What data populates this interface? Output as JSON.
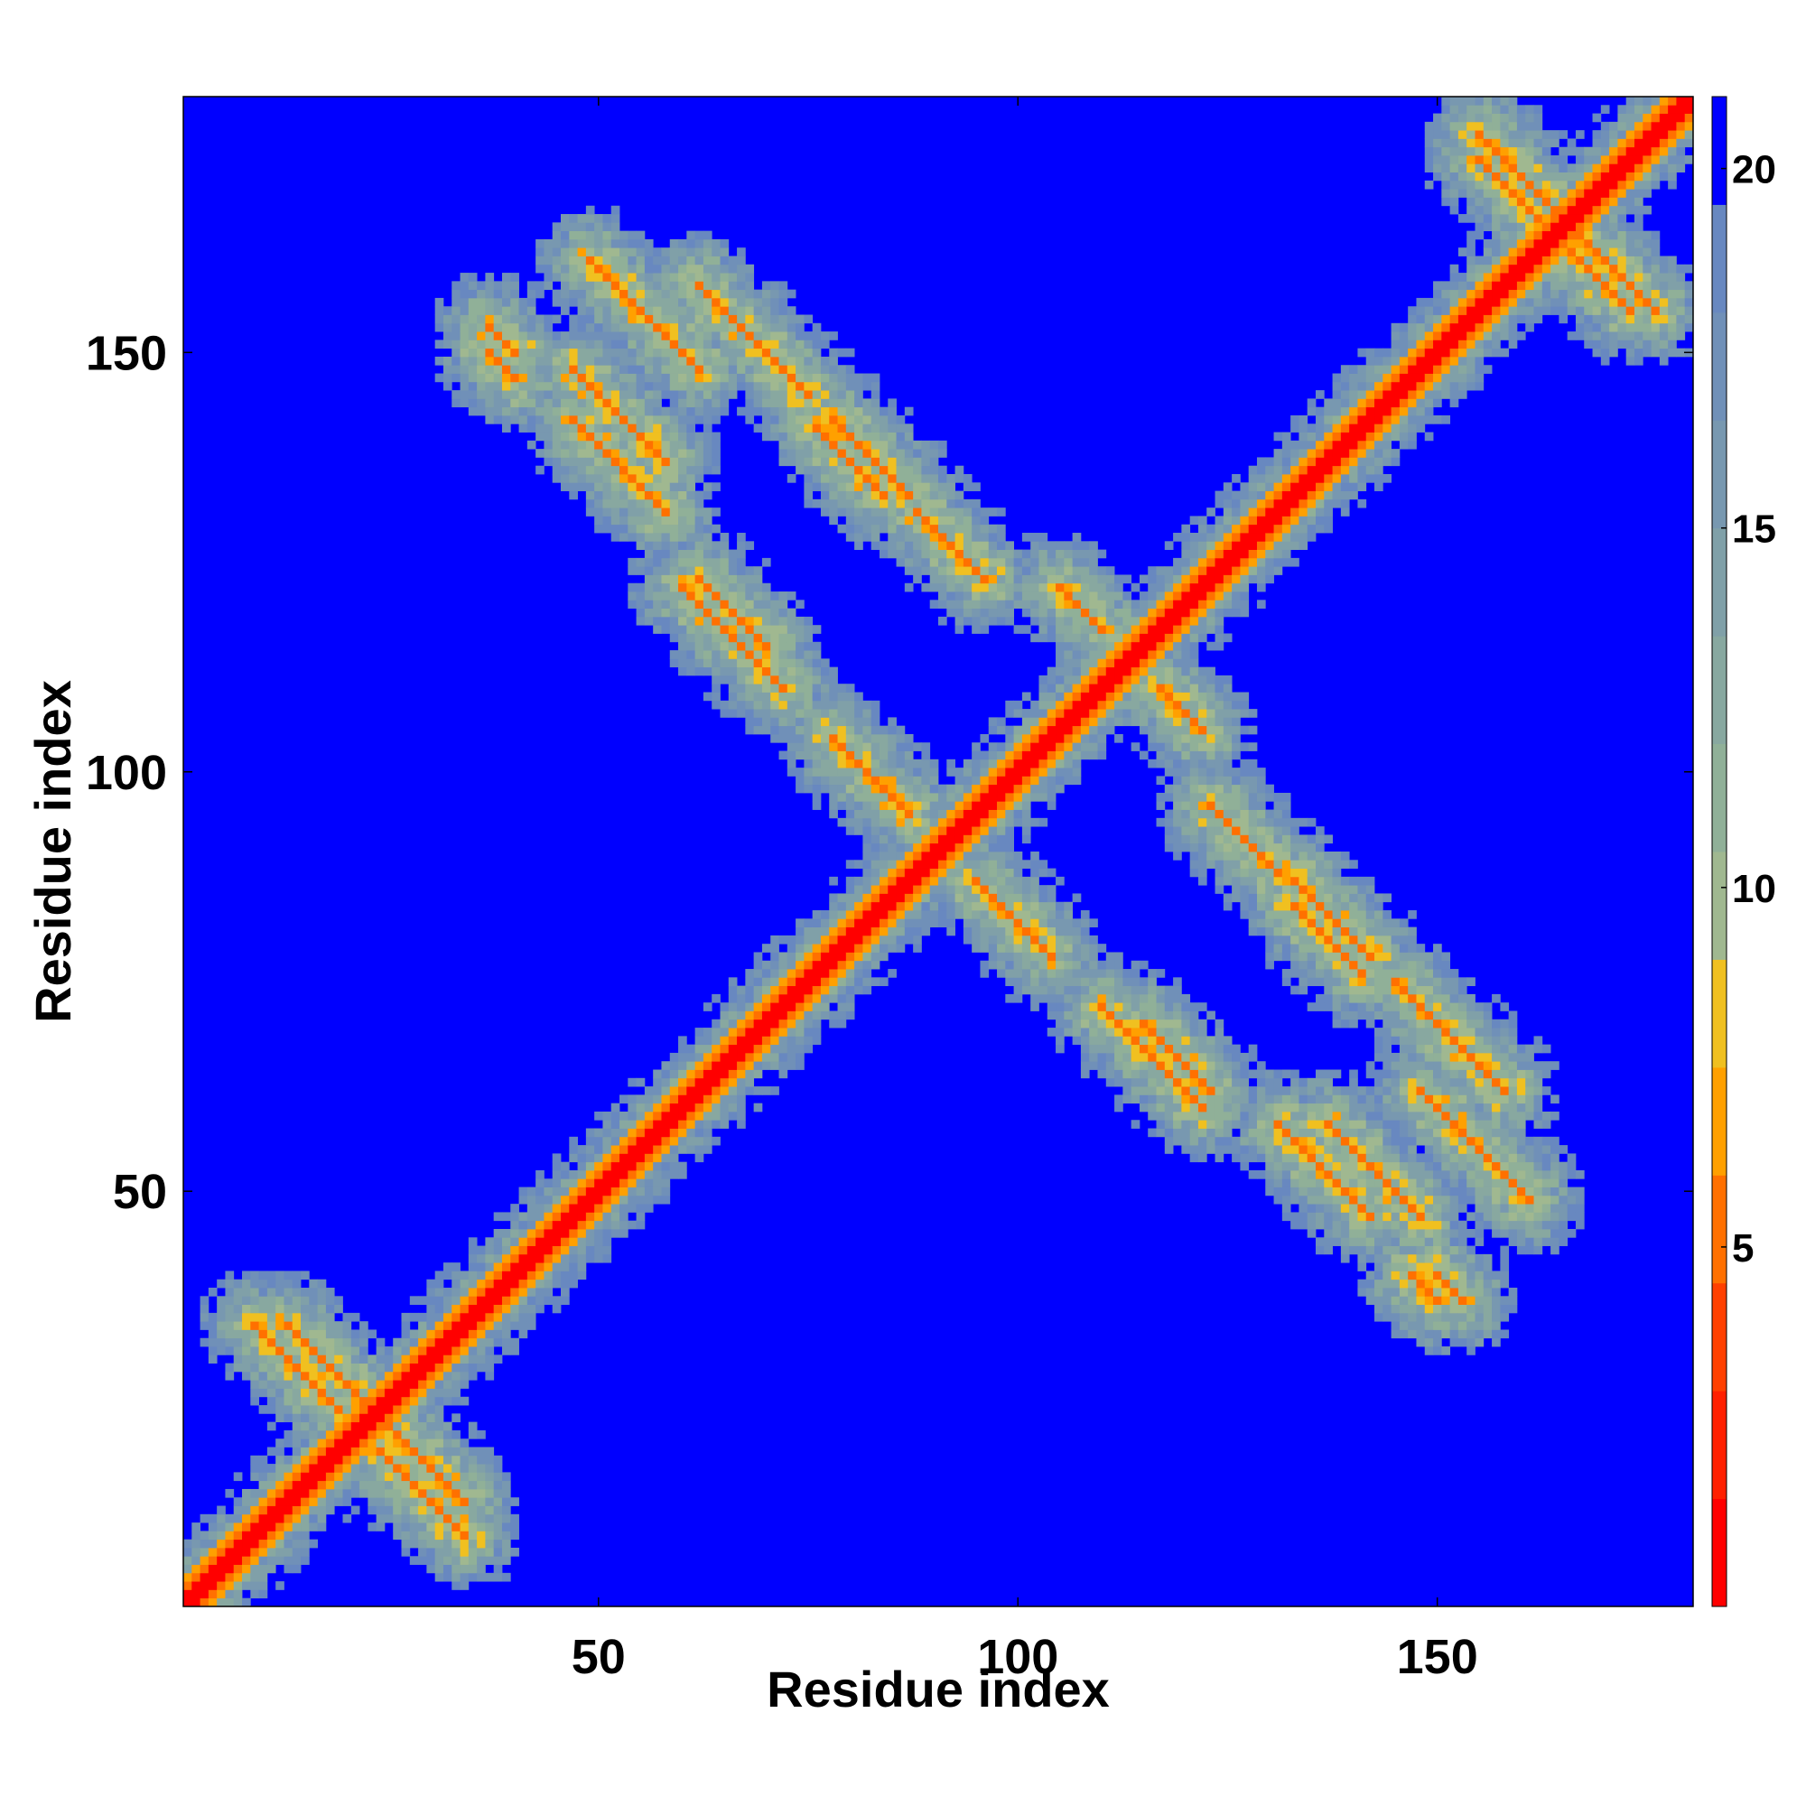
{
  "chart_data": {
    "type": "heatmap",
    "title": "",
    "xlabel": "Residue index",
    "ylabel": "Residue index",
    "n_residues": 180,
    "xlim": [
      1,
      180
    ],
    "ylim": [
      1,
      180
    ],
    "x_ticks": [
      "50",
      "100",
      "150"
    ],
    "y_ticks": [
      "50",
      "100",
      "150"
    ],
    "colorbar": {
      "range": [
        0,
        21
      ],
      "ticks": [
        "5",
        "10",
        "15",
        "20"
      ],
      "levels": [
        {
          "upper": 1.5,
          "color": "#ff0000"
        },
        {
          "upper": 3,
          "color": "#ff2000"
        },
        {
          "upper": 4.5,
          "color": "#ff4000"
        },
        {
          "upper": 6,
          "color": "#ff7000"
        },
        {
          "upper": 7.5,
          "color": "#ffa000"
        },
        {
          "upper": 9,
          "color": "#f0c020"
        },
        {
          "upper": 10.5,
          "color": "#a0b890"
        },
        {
          "upper": 12,
          "color": "#90b098"
        },
        {
          "upper": 13.5,
          "color": "#88a8a0"
        },
        {
          "upper": 15,
          "color": "#80a0a8"
        },
        {
          "upper": 16.5,
          "color": "#7898b0"
        },
        {
          "upper": 18,
          "color": "#7090b8"
        },
        {
          "upper": 19.5,
          "color": "#6888c0"
        },
        {
          "upper": 21,
          "color": "#0000ff"
        }
      ]
    },
    "anti_diagonal_contacts": [
      {
        "i": 9,
        "j": 34,
        "length": 11
      },
      {
        "i": 25,
        "j": 22,
        "length": 10
      },
      {
        "i": 47,
        "j": 148,
        "length": 12
      },
      {
        "i": 62,
        "j": 158,
        "length": 14
      },
      {
        "i": 78,
        "j": 142,
        "length": 10
      },
      {
        "i": 88,
        "j": 131,
        "length": 9
      },
      {
        "i": 155,
        "j": 173,
        "length": 12
      },
      {
        "i": 165,
        "j": 166,
        "length": 12
      },
      {
        "i": 148,
        "j": 62,
        "length": 14
      },
      {
        "i": 133,
        "j": 84,
        "length": 9
      },
      {
        "i": 110,
        "j": 72,
        "length": 13
      },
      {
        "i": 131,
        "j": 58,
        "length": 12
      },
      {
        "i": 95,
        "j": 87,
        "length": 10
      },
      {
        "i": 62,
        "j": 123,
        "length": 9
      },
      {
        "i": 117,
        "j": 110,
        "length": 6
      },
      {
        "i": 37,
        "j": 150,
        "length": 4
      },
      {
        "i": 150,
        "j": 40,
        "length": 4
      }
    ]
  }
}
